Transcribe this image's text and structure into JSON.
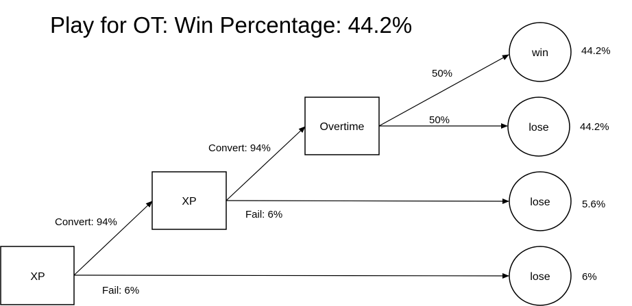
{
  "title": "Play for OT: Win Percentage: 44.2%",
  "nodes": {
    "xp1": "XP",
    "xp2": "XP",
    "overtime": "Overtime",
    "win": "win",
    "lose_ot": "lose",
    "lose_xp2": "lose",
    "lose_xp1": "lose"
  },
  "edges": {
    "xp1_convert": "Convert: 94%",
    "xp1_fail": "Fail: 6%",
    "xp2_convert": "Convert: 94%",
    "xp2_fail": "Fail: 6%",
    "ot_win": "50%",
    "ot_lose": "50%"
  },
  "outcomes": {
    "win": "44.2%",
    "lose_ot": "44.2%",
    "lose_xp2": "5.6%",
    "lose_xp1": "6%"
  }
}
